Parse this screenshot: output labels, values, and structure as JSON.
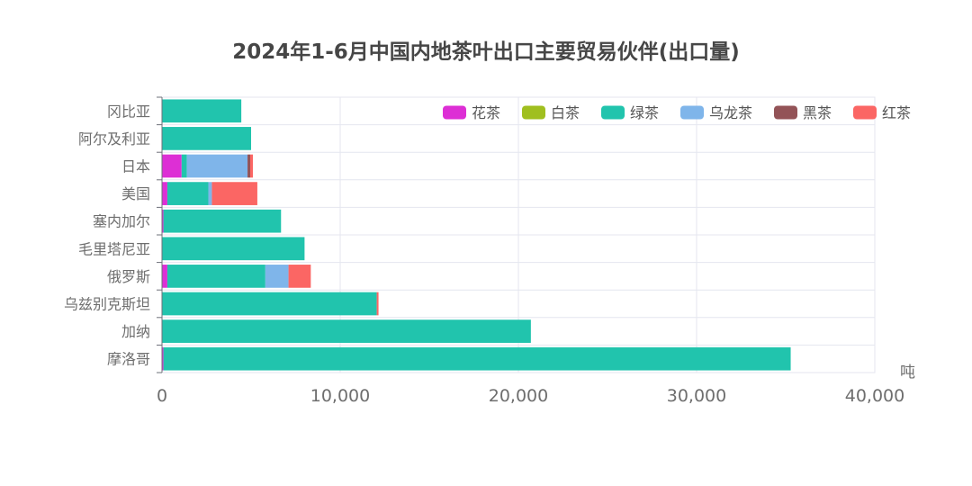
{
  "chart_data": {
    "type": "bar",
    "orientation": "horizontal",
    "stacked": true,
    "title": "2024年1-6月中国内地茶叶出口主要贸易伙伴(出口量)",
    "xunit": "吨",
    "xlim": [
      0,
      40000
    ],
    "xticks": [
      0,
      10000,
      20000,
      30000,
      40000
    ],
    "xtick_labels": [
      "0",
      "10,000",
      "20,000",
      "30,000",
      "40,000"
    ],
    "grid": true,
    "legend_position": "top-right",
    "categories": [
      "冈比亚",
      "阿尔及利亚",
      "日本",
      "美国",
      "塞内加尔",
      "毛里塔尼亚",
      "俄罗斯",
      "乌兹别克斯坦",
      "加纳",
      "摩洛哥"
    ],
    "series": [
      {
        "name": "花茶",
        "color": "#dd2fd5",
        "values": [
          0,
          0,
          1100,
          300,
          80,
          0,
          300,
          0,
          0,
          80
        ]
      },
      {
        "name": "白茶",
        "color": "#a0bf1f",
        "values": [
          0,
          0,
          0,
          0,
          0,
          0,
          0,
          0,
          0,
          0
        ]
      },
      {
        "name": "绿茶",
        "color": "#21c4ad",
        "values": [
          4450,
          5000,
          300,
          2300,
          6600,
          8000,
          5500,
          12050,
          20700,
          35200
        ]
      },
      {
        "name": "乌龙茶",
        "color": "#7fb5ea",
        "values": [
          0,
          0,
          3400,
          200,
          0,
          0,
          1300,
          0,
          0,
          0
        ]
      },
      {
        "name": "黑茶",
        "color": "#935357",
        "values": [
          0,
          0,
          150,
          0,
          0,
          0,
          0,
          0,
          0,
          0
        ]
      },
      {
        "name": "红茶",
        "color": "#fb6664",
        "values": [
          0,
          0,
          150,
          2550,
          0,
          0,
          1250,
          100,
          0,
          0
        ]
      }
    ]
  }
}
